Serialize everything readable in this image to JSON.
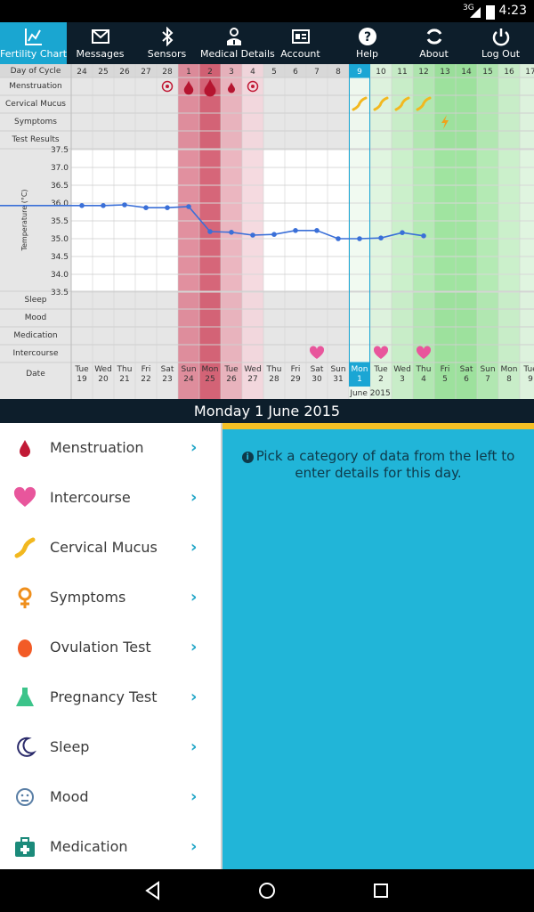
{
  "status_bar": {
    "network": "3G",
    "time": "4:23"
  },
  "toolbar": {
    "items": [
      {
        "label": "Fertility Chart",
        "icon": "chart-icon",
        "active": true
      },
      {
        "label": "Messages",
        "icon": "mail-icon",
        "active": false
      },
      {
        "label": "Sensors",
        "icon": "bluetooth-icon",
        "active": false
      },
      {
        "label": "Medical Details",
        "icon": "doctor-icon",
        "active": false
      },
      {
        "label": "Account",
        "icon": "id-card-icon",
        "active": false
      },
      {
        "label": "Help",
        "icon": "question-icon",
        "active": false
      },
      {
        "label": "About",
        "icon": "refresh-icon",
        "active": false
      },
      {
        "label": "Log Out",
        "icon": "power-icon",
        "active": false
      }
    ]
  },
  "chart_data": {
    "type": "line",
    "row_labels": [
      "Day of Cycle",
      "Menstruation",
      "Cervical Mucus",
      "Symptoms",
      "Test Results",
      "Sleep",
      "Mood",
      "Medication",
      "Intercourse",
      "Date"
    ],
    "ylabel": "Temperature (°C)",
    "ylim": [
      33.5,
      37.5
    ],
    "yticks": [
      "37.5",
      "37.0",
      "36.5",
      "36.0",
      "35.5",
      "35.0",
      "34.5",
      "34.0",
      "33.5"
    ],
    "days": [
      {
        "cycle": "24",
        "weekday": "Tue",
        "date": "19",
        "temp": 35.93,
        "shade": "none"
      },
      {
        "cycle": "25",
        "weekday": "Wed",
        "date": "20",
        "temp": 35.93,
        "shade": "none"
      },
      {
        "cycle": "26",
        "weekday": "Thu",
        "date": "21",
        "temp": 35.95,
        "shade": "none"
      },
      {
        "cycle": "27",
        "weekday": "Fri",
        "date": "22",
        "temp": 35.87,
        "shade": "none"
      },
      {
        "cycle": "28",
        "weekday": "Sat",
        "date": "23",
        "temp": 35.87,
        "shade": "none",
        "menstruation": "target"
      },
      {
        "cycle": "1",
        "weekday": "Sun",
        "date": "24",
        "temp": 35.9,
        "shade": "period-2",
        "menstruation": "drop-medium"
      },
      {
        "cycle": "2",
        "weekday": "Mon",
        "date": "25",
        "temp": 35.2,
        "shade": "period-1",
        "menstruation": "drop-heavy"
      },
      {
        "cycle": "3",
        "weekday": "Tue",
        "date": "26",
        "temp": 35.18,
        "shade": "period-3",
        "menstruation": "drop-light"
      },
      {
        "cycle": "4",
        "weekday": "Wed",
        "date": "27",
        "temp": 35.1,
        "shade": "period-4",
        "menstruation": "target"
      },
      {
        "cycle": "5",
        "weekday": "Thu",
        "date": "28",
        "temp": 35.12,
        "shade": "none"
      },
      {
        "cycle": "6",
        "weekday": "Fri",
        "date": "29",
        "temp": 35.23,
        "shade": "none"
      },
      {
        "cycle": "7",
        "weekday": "Sat",
        "date": "30",
        "temp": 35.23,
        "shade": "none",
        "intercourse": true
      },
      {
        "cycle": "8",
        "weekday": "Sun",
        "date": "31",
        "temp": 35.0,
        "shade": "none"
      },
      {
        "cycle": "9",
        "weekday": "Mon",
        "date": "1",
        "temp": 35.0,
        "shade": "green-0",
        "selected": true,
        "mucus": true
      },
      {
        "cycle": "10",
        "weekday": "Tue",
        "date": "2",
        "temp": 35.02,
        "shade": "green-1",
        "mucus": true,
        "intercourse": true
      },
      {
        "cycle": "11",
        "weekday": "Wed",
        "date": "3",
        "temp": 35.17,
        "shade": "green-2",
        "mucus": true
      },
      {
        "cycle": "12",
        "weekday": "Thu",
        "date": "4",
        "temp": 35.08,
        "shade": "green-3",
        "mucus": true,
        "intercourse": true
      },
      {
        "cycle": "13",
        "weekday": "Fri",
        "date": "5",
        "temp": null,
        "shade": "green-4",
        "symptom": true
      },
      {
        "cycle": "14",
        "weekday": "Sat",
        "date": "6",
        "temp": null,
        "shade": "green-4"
      },
      {
        "cycle": "15",
        "weekday": "Sun",
        "date": "7",
        "temp": null,
        "shade": "green-3"
      },
      {
        "cycle": "16",
        "weekday": "Mon",
        "date": "8",
        "temp": null,
        "shade": "green-2"
      },
      {
        "cycle": "17",
        "weekday": "Tue",
        "date": "9",
        "temp": null,
        "shade": "green-1"
      }
    ],
    "month_label": "June 2015",
    "colors": {
      "line": "#3a6fd8",
      "selected": "#1ba6d4",
      "period_dark": "#d13f5a",
      "fertile": "#8de08d"
    }
  },
  "selected_date": "Monday 1 June 2015",
  "categories": [
    {
      "label": "Menstruation",
      "icon": "blood-drop-icon"
    },
    {
      "label": "Intercourse",
      "icon": "heart-icon"
    },
    {
      "label": "Cervical Mucus",
      "icon": "cervical-mucus-icon"
    },
    {
      "label": "Symptoms",
      "icon": "female-symbol-icon"
    },
    {
      "label": "Ovulation Test",
      "icon": "ovulation-egg-icon"
    },
    {
      "label": "Pregnancy Test",
      "icon": "flask-icon"
    },
    {
      "label": "Sleep",
      "icon": "moon-icon"
    },
    {
      "label": "Mood",
      "icon": "face-icon"
    },
    {
      "label": "Medication",
      "icon": "medkit-icon"
    }
  ],
  "panel": {
    "message": "Pick a category of data from the left to enter details for this day."
  },
  "nav": {
    "back": "back-icon",
    "home": "home-icon",
    "recent": "recent-apps-icon"
  }
}
